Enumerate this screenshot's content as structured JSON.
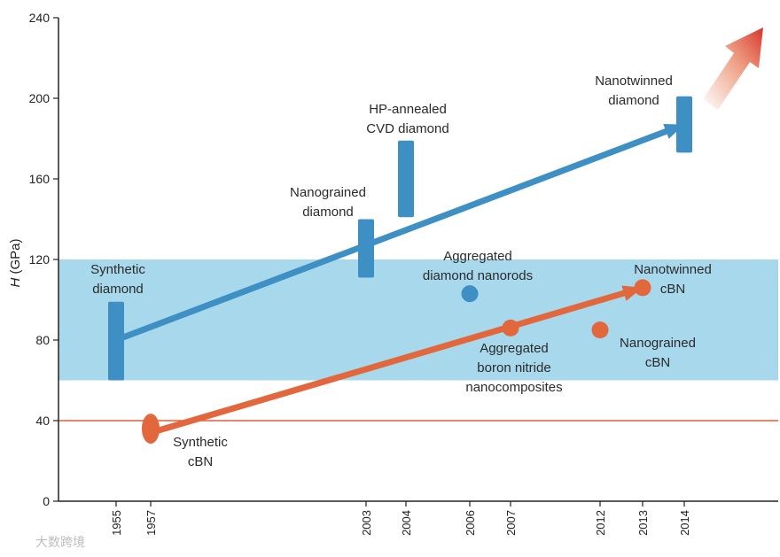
{
  "chart_data": {
    "type": "scatter",
    "ylabel_var": "H",
    "ylabel_unit": " (GPa)",
    "ylim": [
      0,
      240
    ],
    "y_ticks": [
      "0",
      "40",
      "80",
      "120",
      "160",
      "200",
      "240"
    ],
    "x_ticks": [
      "1955",
      "1957",
      "2003",
      "2004",
      "2006",
      "2007",
      "2012",
      "2013",
      "2014"
    ],
    "band": {
      "from": 60,
      "to": 120,
      "color": "#a8d8ec"
    },
    "threshold": {
      "value": 40,
      "color": "#e35f3c"
    },
    "colors": {
      "diamond": "#3d8fc4",
      "cbn": "#e3673c",
      "axis": "#222222"
    },
    "diamond_points": [
      {
        "year": 1955,
        "low": 60,
        "high": 99,
        "label_lines": [
          "Synthetic",
          "diamond"
        ]
      },
      {
        "year": 2003,
        "low": 111,
        "high": 140,
        "label_lines": [
          "Nanograined",
          "diamond"
        ]
      },
      {
        "year": 2004,
        "low": 141,
        "high": 179,
        "label_lines": [
          "HP-annealed",
          "CVD diamond"
        ]
      },
      {
        "year": 2014,
        "low": 173,
        "high": 201,
        "label_lines": [
          "Nanotwinned",
          "diamond"
        ]
      }
    ],
    "nanorod_point": {
      "year": 2006,
      "value": 103,
      "label_lines": [
        "Aggregated",
        "diamond nanorods"
      ]
    },
    "cbn_points": [
      {
        "year": 1957,
        "value": 36,
        "label_lines": [
          "Synthetic",
          "cBN"
        ]
      },
      {
        "year": 2007,
        "value": 86,
        "label_lines": [
          "Aggregated",
          "boron nitride",
          "nanocomposites"
        ]
      },
      {
        "year": 2012,
        "value": 85,
        "label_lines": [
          "Nanograined",
          "cBN"
        ]
      },
      {
        "year": 2013,
        "value": 106,
        "label_lines": [
          "Nanotwinned",
          "cBN"
        ]
      }
    ],
    "diamond_trend": {
      "from": {
        "year": 1955,
        "value": 80
      },
      "to": {
        "year": 2014,
        "value": 187
      }
    },
    "cbn_trend": {
      "from": {
        "year": 1957,
        "value": 34
      },
      "to": {
        "year": 2013,
        "value": 106
      }
    }
  },
  "watermark": "大数跨境"
}
